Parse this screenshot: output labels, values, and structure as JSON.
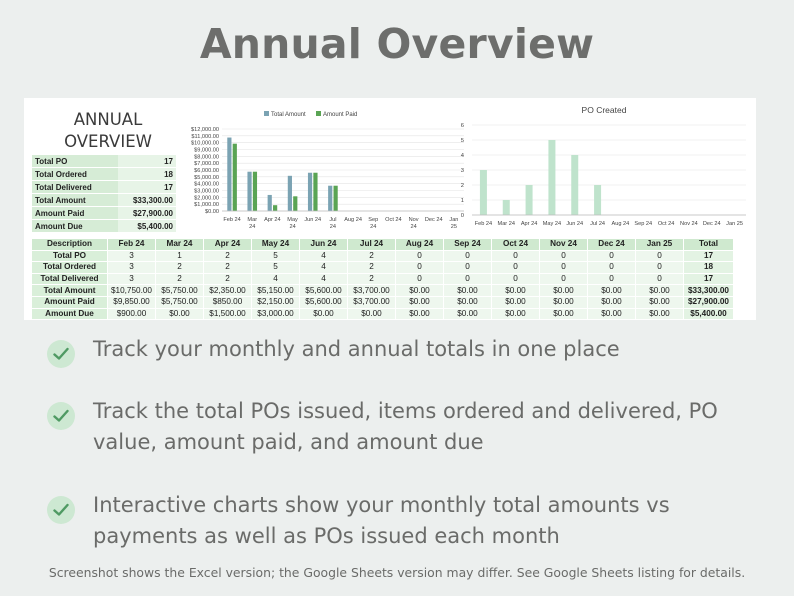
{
  "page": {
    "title": "Annual Overview",
    "footnote": "Screenshot shows the Excel version; the Google Sheets version may differ. See Google Sheets listing for details."
  },
  "sheet": {
    "side_title_line1": "ANNUAL",
    "side_title_line2": "OVERVIEW",
    "summary": [
      {
        "label": "Total PO",
        "value": "17"
      },
      {
        "label": "Total Ordered",
        "value": "18"
      },
      {
        "label": "Total Delivered",
        "value": "17"
      },
      {
        "label": "Total Amount",
        "value": "$33,300.00"
      },
      {
        "label": "Amount Paid",
        "value": "$27,900.00"
      },
      {
        "label": "Amount Due",
        "value": "$5,400.00"
      }
    ],
    "table": {
      "headers": [
        "Description",
        "Feb 24",
        "Mar 24",
        "Apr 24",
        "May 24",
        "Jun 24",
        "Jul 24",
        "Aug 24",
        "Sep 24",
        "Oct 24",
        "Nov 24",
        "Dec 24",
        "Jan 25",
        "Total"
      ],
      "rows": [
        {
          "label": "Total PO",
          "cells": [
            "3",
            "1",
            "2",
            "5",
            "4",
            "2",
            "0",
            "0",
            "0",
            "0",
            "0",
            "0"
          ],
          "total": "17"
        },
        {
          "label": "Total Ordered",
          "cells": [
            "3",
            "2",
            "2",
            "5",
            "4",
            "2",
            "0",
            "0",
            "0",
            "0",
            "0",
            "0"
          ],
          "total": "18"
        },
        {
          "label": "Total Delivered",
          "cells": [
            "3",
            "2",
            "2",
            "4",
            "4",
            "2",
            "0",
            "0",
            "0",
            "0",
            "0",
            "0"
          ],
          "total": "17"
        },
        {
          "label": "Total Amount",
          "cells": [
            "$10,750.00",
            "$5,750.00",
            "$2,350.00",
            "$5,150.00",
            "$5,600.00",
            "$3,700.00",
            "$0.00",
            "$0.00",
            "$0.00",
            "$0.00",
            "$0.00",
            "$0.00"
          ],
          "total": "$33,300.00"
        },
        {
          "label": "Amount Paid",
          "cells": [
            "$9,850.00",
            "$5,750.00",
            "$850.00",
            "$2,150.00",
            "$5,600.00",
            "$3,700.00",
            "$0.00",
            "$0.00",
            "$0.00",
            "$0.00",
            "$0.00",
            "$0.00"
          ],
          "total": "$27,900.00"
        },
        {
          "label": "Amount Due",
          "cells": [
            "$900.00",
            "$0.00",
            "$1,500.00",
            "$3,000.00",
            "$0.00",
            "$0.00",
            "$0.00",
            "$0.00",
            "$0.00",
            "$0.00",
            "$0.00",
            "$0.00"
          ],
          "total": "$5,400.00"
        }
      ]
    }
  },
  "bullets": [
    "Track your monthly and annual totals in one place",
    "Track the total POs issued, items ordered and delivered, PO value, amount paid, and amount due",
    "Interactive charts show your monthly total amounts vs payments as well as POs issued each month"
  ],
  "colors": {
    "amount": "#7ba3b3",
    "paid": "#5aa454",
    "po": "#bfe3cc",
    "check": "#4f9a63"
  },
  "chart_data": [
    {
      "type": "bar",
      "title": "",
      "categories": [
        "Feb 24",
        "Mar 24",
        "Apr 24",
        "May 24",
        "Jun 24",
        "Jul 24",
        "Aug 24",
        "Sep 24",
        "Oct 24",
        "Nov 24",
        "Dec 24",
        "Jan 25"
      ],
      "series": [
        {
          "name": "Total Amount",
          "values": [
            10750,
            5750,
            2350,
            5150,
            5600,
            3700,
            0,
            0,
            0,
            0,
            0,
            0
          ]
        },
        {
          "name": "Amount Paid",
          "values": [
            9850,
            5750,
            850,
            2150,
            5600,
            3700,
            0,
            0,
            0,
            0,
            0,
            0
          ]
        }
      ],
      "ylim": [
        0,
        12000
      ],
      "yticks": [
        "$0.00",
        "$1,000.00",
        "$2,000.00",
        "$3,000.00",
        "$4,000.00",
        "$5,000.00",
        "$6,000.00",
        "$7,000.00",
        "$8,000.00",
        "$9,000.00",
        "$10,000.00",
        "$11,000.00",
        "$12,000.00"
      ],
      "legend": "top",
      "grid": true
    },
    {
      "type": "bar",
      "title": "PO Created",
      "categories": [
        "Feb 24",
        "Mar 24",
        "Apr 24",
        "May 24",
        "Jun 24",
        "Jul 24",
        "Aug 24",
        "Sep 24",
        "Oct 24",
        "Nov 24",
        "Dec 24",
        "Jan 25"
      ],
      "series": [
        {
          "values": [
            3,
            1,
            2,
            5,
            4,
            2,
            0,
            0,
            0,
            0,
            0,
            0
          ]
        }
      ],
      "ylim": [
        0,
        6
      ],
      "yticks": [
        "0",
        "1",
        "2",
        "3",
        "4",
        "5",
        "6"
      ],
      "grid": true
    }
  ]
}
